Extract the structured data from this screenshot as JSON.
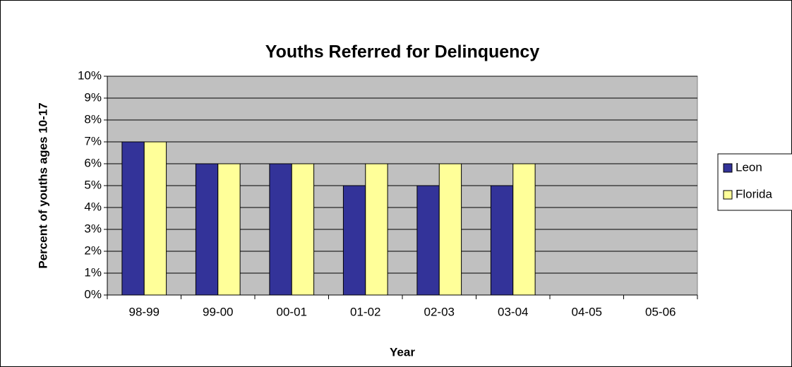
{
  "chart_data": {
    "type": "bar",
    "title": "Youths Referred for Delinquency",
    "x_label": "Year",
    "y_label": "Percent of youths ages 10-17",
    "categories": [
      "98-99",
      "99-00",
      "00-01",
      "01-02",
      "02-03",
      "03-04",
      "04-05",
      "05-06"
    ],
    "series": [
      {
        "name": "Leon",
        "color": "#333399",
        "values": [
          7,
          6,
          6,
          5,
          5,
          5,
          null,
          null
        ]
      },
      {
        "name": "Florida",
        "color": "#FFFF99",
        "values": [
          7,
          6,
          6,
          6,
          6,
          6,
          null,
          null
        ]
      }
    ],
    "ylim": [
      0,
      10
    ],
    "yticks": [
      {
        "value": 0,
        "label": "0%"
      },
      {
        "value": 1,
        "label": "1%"
      },
      {
        "value": 2,
        "label": "2%"
      },
      {
        "value": 3,
        "label": "3%"
      },
      {
        "value": 4,
        "label": "4%"
      },
      {
        "value": 5,
        "label": "5%"
      },
      {
        "value": 6,
        "label": "6%"
      },
      {
        "value": 7,
        "label": "7%"
      },
      {
        "value": 8,
        "label": "8%"
      },
      {
        "value": 9,
        "label": "9%"
      },
      {
        "value": 10,
        "label": "10%"
      }
    ],
    "grid": true,
    "plot_background": "#C0C0C0",
    "legend": "right"
  }
}
